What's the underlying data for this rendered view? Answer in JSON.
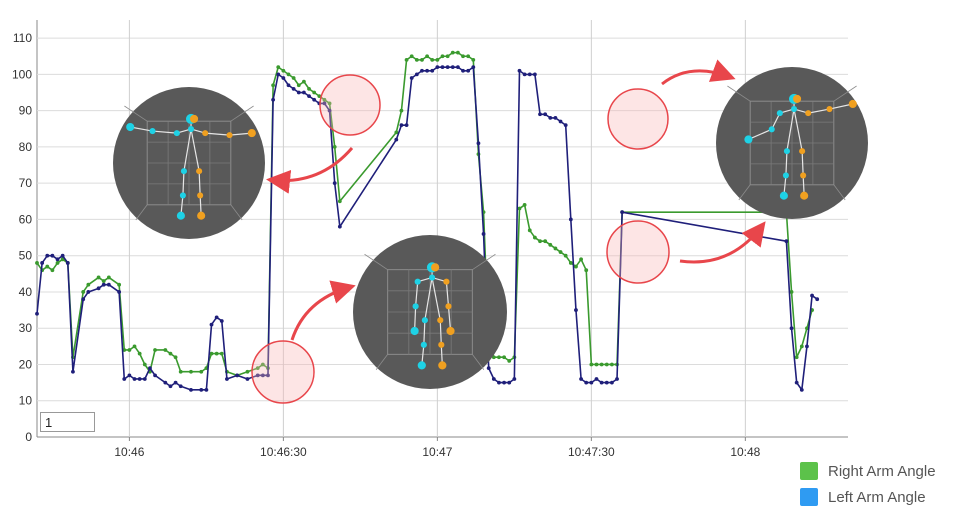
{
  "chart_data": {
    "type": "line",
    "title": "",
    "xlabel": "",
    "ylabel": "",
    "ylim": [
      0,
      115
    ],
    "xlim": [
      "10:45:42",
      "10:48:20"
    ],
    "yticks": [
      0,
      10,
      20,
      30,
      40,
      50,
      60,
      70,
      80,
      90,
      100,
      110
    ],
    "xticks": [
      {
        "time": "10:46:00",
        "label": "10:46"
      },
      {
        "time": "10:46:30",
        "label": "10:46:30"
      },
      {
        "time": "10:47:00",
        "label": "10:47"
      },
      {
        "time": "10:47:30",
        "label": "10:47:30"
      },
      {
        "time": "10:48:00",
        "label": "10:48"
      }
    ],
    "grid": true,
    "legend_position": "bottom-right",
    "series": [
      {
        "name": "Right Arm Angle",
        "color": "#3a9a2e",
        "points": [
          [
            "10:45:42",
            48
          ],
          [
            "10:45:43",
            46
          ],
          [
            "10:45:44",
            47
          ],
          [
            "10:45:45",
            46
          ],
          [
            "10:45:46",
            48
          ],
          [
            "10:45:47",
            49
          ],
          [
            "10:45:48",
            48
          ],
          [
            "10:45:49",
            22
          ],
          [
            "10:45:51",
            40
          ],
          [
            "10:45:52",
            42
          ],
          [
            "10:45:54",
            44
          ],
          [
            "10:45:55",
            43
          ],
          [
            "10:45:56",
            44
          ],
          [
            "10:45:58",
            42
          ],
          [
            "10:45:59",
            24
          ],
          [
            "10:46:00",
            24
          ],
          [
            "10:46:01",
            25
          ],
          [
            "10:46:02",
            23
          ],
          [
            "10:46:03",
            20
          ],
          [
            "10:46:04",
            18
          ],
          [
            "10:46:05",
            24
          ],
          [
            "10:46:07",
            24
          ],
          [
            "10:46:08",
            23
          ],
          [
            "10:46:09",
            22
          ],
          [
            "10:46:10",
            18
          ],
          [
            "10:46:12",
            18
          ],
          [
            "10:46:14",
            18
          ],
          [
            "10:46:15",
            19
          ],
          [
            "10:46:16",
            23
          ],
          [
            "10:46:17",
            23
          ],
          [
            "10:46:18",
            23
          ],
          [
            "10:46:19",
            18
          ],
          [
            "10:46:21",
            17
          ],
          [
            "10:46:23",
            18
          ],
          [
            "10:46:25",
            19
          ],
          [
            "10:46:26",
            20
          ],
          [
            "10:46:27",
            19
          ],
          [
            "10:46:28",
            97
          ],
          [
            "10:46:29",
            102
          ],
          [
            "10:46:30",
            101
          ],
          [
            "10:46:31",
            100
          ],
          [
            "10:46:32",
            99
          ],
          [
            "10:46:33",
            97
          ],
          [
            "10:46:34",
            98
          ],
          [
            "10:46:35",
            96
          ],
          [
            "10:46:36",
            95
          ],
          [
            "10:46:37",
            94
          ],
          [
            "10:46:38",
            93
          ],
          [
            "10:46:39",
            92
          ],
          [
            "10:46:40",
            80
          ],
          [
            "10:46:41",
            65
          ],
          [
            "10:46:52",
            84
          ],
          [
            "10:46:53",
            90
          ],
          [
            "10:46:54",
            104
          ],
          [
            "10:46:55",
            105
          ],
          [
            "10:46:56",
            104
          ],
          [
            "10:46:57",
            104
          ],
          [
            "10:46:58",
            105
          ],
          [
            "10:46:59",
            104
          ],
          [
            "10:47:00",
            104
          ],
          [
            "10:47:01",
            105
          ],
          [
            "10:47:02",
            105
          ],
          [
            "10:47:03",
            106
          ],
          [
            "10:47:04",
            106
          ],
          [
            "10:47:05",
            105
          ],
          [
            "10:47:06",
            105
          ],
          [
            "10:47:07",
            104
          ],
          [
            "10:47:08",
            78
          ],
          [
            "10:47:09",
            62
          ],
          [
            "10:47:10",
            26
          ],
          [
            "10:47:11",
            22
          ],
          [
            "10:47:12",
            22
          ],
          [
            "10:47:13",
            22
          ],
          [
            "10:47:14",
            21
          ],
          [
            "10:47:15",
            22
          ],
          [
            "10:47:16",
            63
          ],
          [
            "10:47:17",
            64
          ],
          [
            "10:47:18",
            57
          ],
          [
            "10:47:19",
            55
          ],
          [
            "10:47:20",
            54
          ],
          [
            "10:47:21",
            54
          ],
          [
            "10:47:22",
            53
          ],
          [
            "10:47:23",
            52
          ],
          [
            "10:47:24",
            51
          ],
          [
            "10:47:25",
            50
          ],
          [
            "10:47:26",
            48
          ],
          [
            "10:47:27",
            47
          ],
          [
            "10:47:28",
            49
          ],
          [
            "10:47:29",
            46
          ],
          [
            "10:47:30",
            20
          ],
          [
            "10:47:31",
            20
          ],
          [
            "10:47:32",
            20
          ],
          [
            "10:47:33",
            20
          ],
          [
            "10:47:34",
            20
          ],
          [
            "10:47:35",
            20
          ],
          [
            "10:47:36",
            62
          ],
          [
            "10:48:08",
            62
          ],
          [
            "10:48:09",
            40
          ],
          [
            "10:48:10",
            22
          ],
          [
            "10:48:11",
            25
          ],
          [
            "10:48:12",
            30
          ],
          [
            "10:48:13",
            35
          ]
        ]
      },
      {
        "name": "Left Arm Angle",
        "color": "#1f1f7a",
        "points": [
          [
            "10:45:42",
            34
          ],
          [
            "10:45:43",
            48
          ],
          [
            "10:45:44",
            50
          ],
          [
            "10:45:45",
            50
          ],
          [
            "10:45:46",
            49
          ],
          [
            "10:45:47",
            50
          ],
          [
            "10:45:48",
            48
          ],
          [
            "10:45:49",
            18
          ],
          [
            "10:45:51",
            38
          ],
          [
            "10:45:52",
            40
          ],
          [
            "10:45:54",
            41
          ],
          [
            "10:45:55",
            42
          ],
          [
            "10:45:56",
            42
          ],
          [
            "10:45:58",
            40
          ],
          [
            "10:45:59",
            16
          ],
          [
            "10:46:00",
            17
          ],
          [
            "10:46:01",
            16
          ],
          [
            "10:46:02",
            16
          ],
          [
            "10:46:03",
            16
          ],
          [
            "10:46:04",
            19
          ],
          [
            "10:46:05",
            17
          ],
          [
            "10:46:07",
            15
          ],
          [
            "10:46:08",
            14
          ],
          [
            "10:46:09",
            15
          ],
          [
            "10:46:10",
            14
          ],
          [
            "10:46:12",
            13
          ],
          [
            "10:46:14",
            13
          ],
          [
            "10:46:15",
            13
          ],
          [
            "10:46:16",
            31
          ],
          [
            "10:46:17",
            33
          ],
          [
            "10:46:18",
            32
          ],
          [
            "10:46:19",
            16
          ],
          [
            "10:46:21",
            17
          ],
          [
            "10:46:23",
            16
          ],
          [
            "10:46:25",
            17
          ],
          [
            "10:46:26",
            17
          ],
          [
            "10:46:27",
            17
          ],
          [
            "10:46:28",
            93
          ],
          [
            "10:46:29",
            100
          ],
          [
            "10:46:30",
            99
          ],
          [
            "10:46:31",
            97
          ],
          [
            "10:46:32",
            96
          ],
          [
            "10:46:33",
            95
          ],
          [
            "10:46:34",
            95
          ],
          [
            "10:46:35",
            94
          ],
          [
            "10:46:36",
            93
          ],
          [
            "10:46:37",
            92
          ],
          [
            "10:46:38",
            92
          ],
          [
            "10:46:39",
            90
          ],
          [
            "10:46:40",
            70
          ],
          [
            "10:46:41",
            58
          ],
          [
            "10:46:52",
            82
          ],
          [
            "10:46:53",
            86
          ],
          [
            "10:46:54",
            86
          ],
          [
            "10:46:55",
            99
          ],
          [
            "10:46:56",
            100
          ],
          [
            "10:46:57",
            101
          ],
          [
            "10:46:58",
            101
          ],
          [
            "10:46:59",
            101
          ],
          [
            "10:47:00",
            102
          ],
          [
            "10:47:01",
            102
          ],
          [
            "10:47:02",
            102
          ],
          [
            "10:47:03",
            102
          ],
          [
            "10:47:04",
            102
          ],
          [
            "10:47:05",
            101
          ],
          [
            "10:47:06",
            101
          ],
          [
            "10:47:07",
            102
          ],
          [
            "10:47:08",
            81
          ],
          [
            "10:47:09",
            56
          ],
          [
            "10:47:10",
            19
          ],
          [
            "10:47:11",
            16
          ],
          [
            "10:47:12",
            15
          ],
          [
            "10:47:13",
            15
          ],
          [
            "10:47:14",
            15
          ],
          [
            "10:47:15",
            16
          ],
          [
            "10:47:16",
            101
          ],
          [
            "10:47:17",
            100
          ],
          [
            "10:47:18",
            100
          ],
          [
            "10:47:19",
            100
          ],
          [
            "10:47:20",
            89
          ],
          [
            "10:47:21",
            89
          ],
          [
            "10:47:22",
            88
          ],
          [
            "10:47:23",
            88
          ],
          [
            "10:47:24",
            87
          ],
          [
            "10:47:25",
            86
          ],
          [
            "10:47:26",
            60
          ],
          [
            "10:47:27",
            35
          ],
          [
            "10:47:28",
            16
          ],
          [
            "10:47:29",
            15
          ],
          [
            "10:47:30",
            15
          ],
          [
            "10:47:31",
            16
          ],
          [
            "10:47:32",
            15
          ],
          [
            "10:47:33",
            15
          ],
          [
            "10:47:34",
            15
          ],
          [
            "10:47:35",
            16
          ],
          [
            "10:47:36",
            62
          ],
          [
            "10:48:08",
            54
          ],
          [
            "10:48:09",
            30
          ],
          [
            "10:48:10",
            15
          ],
          [
            "10:48:11",
            13
          ],
          [
            "10:48:12",
            25
          ],
          [
            "10:48:13",
            39
          ],
          [
            "10:48:14",
            38
          ]
        ]
      }
    ]
  },
  "legend": [
    {
      "label": "Right Arm Angle",
      "color": "#5cc24a"
    },
    {
      "label": "Left Arm Angle",
      "color": "#2f9bf2"
    }
  ],
  "zoom_input_value": "1",
  "colors": {
    "highlight_circle": "#e8464b",
    "arrow": "#e8464b",
    "inset_bg": "#595959",
    "joint_cyan": "#1ed2e6",
    "joint_orange": "#f0a020"
  },
  "insets": [
    {
      "name": "inset-pose-top-left"
    },
    {
      "name": "inset-pose-center"
    },
    {
      "name": "inset-pose-top-right"
    }
  ]
}
